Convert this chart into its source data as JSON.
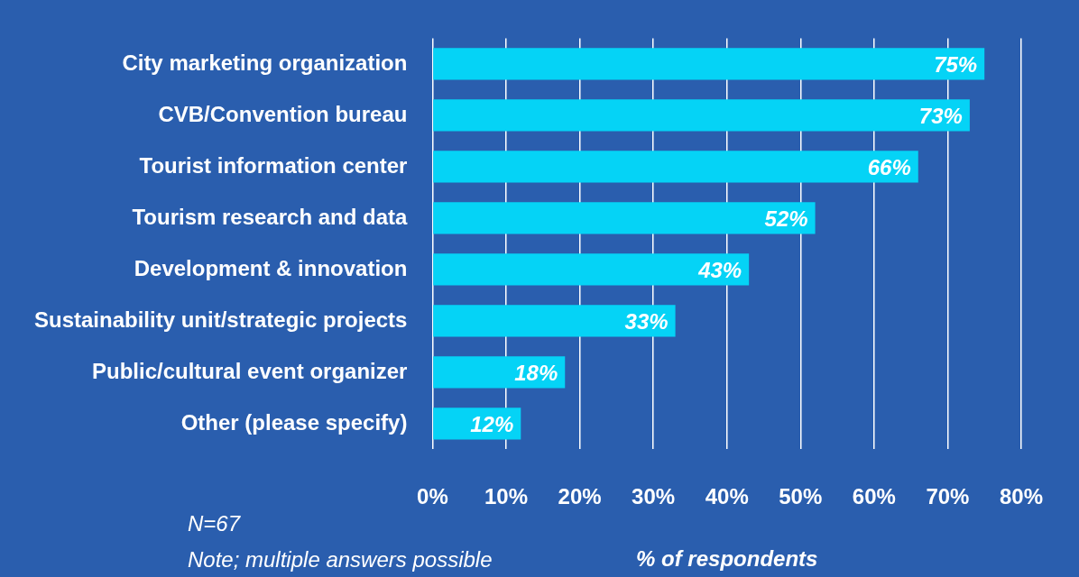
{
  "chart_data": {
    "type": "bar",
    "orientation": "horizontal",
    "categories": [
      "City marketing organization",
      "CVB/Convention bureau",
      "Tourist information center",
      "Tourism research and data",
      "Development & innovation",
      "Sustainability unit/strategic projects",
      "Public/cultural event organizer",
      "Other (please specify)"
    ],
    "values": [
      75,
      73,
      66,
      52,
      43,
      33,
      18,
      12
    ],
    "color": "#05d3f6",
    "xlim": [
      0,
      80
    ],
    "xticks": [
      {
        "value": 0,
        "label": "0%"
      },
      {
        "value": 10,
        "label": "10%"
      },
      {
        "value": 20,
        "label": "20%"
      },
      {
        "value": 30,
        "label": "30%"
      },
      {
        "value": 40,
        "label": "40%"
      },
      {
        "value": 50,
        "label": "50%"
      },
      {
        "value": 60,
        "label": "60%"
      },
      {
        "value": 70,
        "label": "70%"
      },
      {
        "value": 80,
        "label": "80%"
      }
    ],
    "xlabel": "% of respondents",
    "grid": "x",
    "legend": false,
    "data_labels": true,
    "value_labels": [
      "75%",
      "73%",
      "66%",
      "52%",
      "43%",
      "33%",
      "18%",
      "12%"
    ],
    "annotations": [
      "N=67",
      "Note; multiple answers possible"
    ]
  }
}
